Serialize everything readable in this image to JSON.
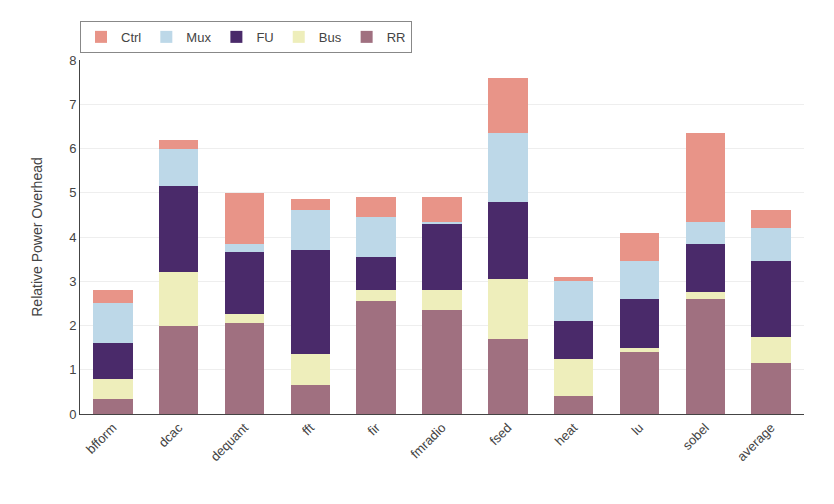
{
  "chart_data": {
    "type": "bar",
    "stacked": true,
    "categories": [
      "bfform",
      "dcac",
      "dequant",
      "fft",
      "fir",
      "fmradio",
      "fsed",
      "heat",
      "lu",
      "sobel",
      "average"
    ],
    "series": [
      {
        "name": "RR",
        "color": "#a07080",
        "values": [
          0.35,
          2.0,
          2.05,
          0.65,
          2.55,
          2.35,
          1.7,
          0.4,
          1.4,
          2.6,
          1.15
        ]
      },
      {
        "name": "Bus",
        "color": "#eeeebb",
        "values": [
          0.45,
          1.2,
          0.2,
          0.7,
          0.25,
          0.45,
          1.35,
          0.85,
          0.1,
          0.15,
          0.6
        ]
      },
      {
        "name": "FU",
        "color": "#4a2a6a",
        "values": [
          0.8,
          1.95,
          1.4,
          2.35,
          0.75,
          1.5,
          1.75,
          0.85,
          1.1,
          1.1,
          1.7
        ]
      },
      {
        "name": "Mux",
        "color": "#bdd8e8",
        "values": [
          0.9,
          0.85,
          0.2,
          0.9,
          0.9,
          0.05,
          1.55,
          0.9,
          0.85,
          0.5,
          0.75
        ]
      },
      {
        "name": "Ctrl",
        "color": "#e89488",
        "values": [
          0.3,
          0.2,
          1.15,
          0.25,
          0.45,
          0.55,
          1.25,
          0.1,
          0.65,
          2.0,
          0.4
        ]
      }
    ],
    "ylabel": "Relative Power Overhead",
    "ylim": [
      0,
      8
    ],
    "yticks": [
      0,
      1,
      2,
      3,
      4,
      5,
      6,
      7,
      8
    ],
    "grid": true,
    "legend": "upper left"
  }
}
